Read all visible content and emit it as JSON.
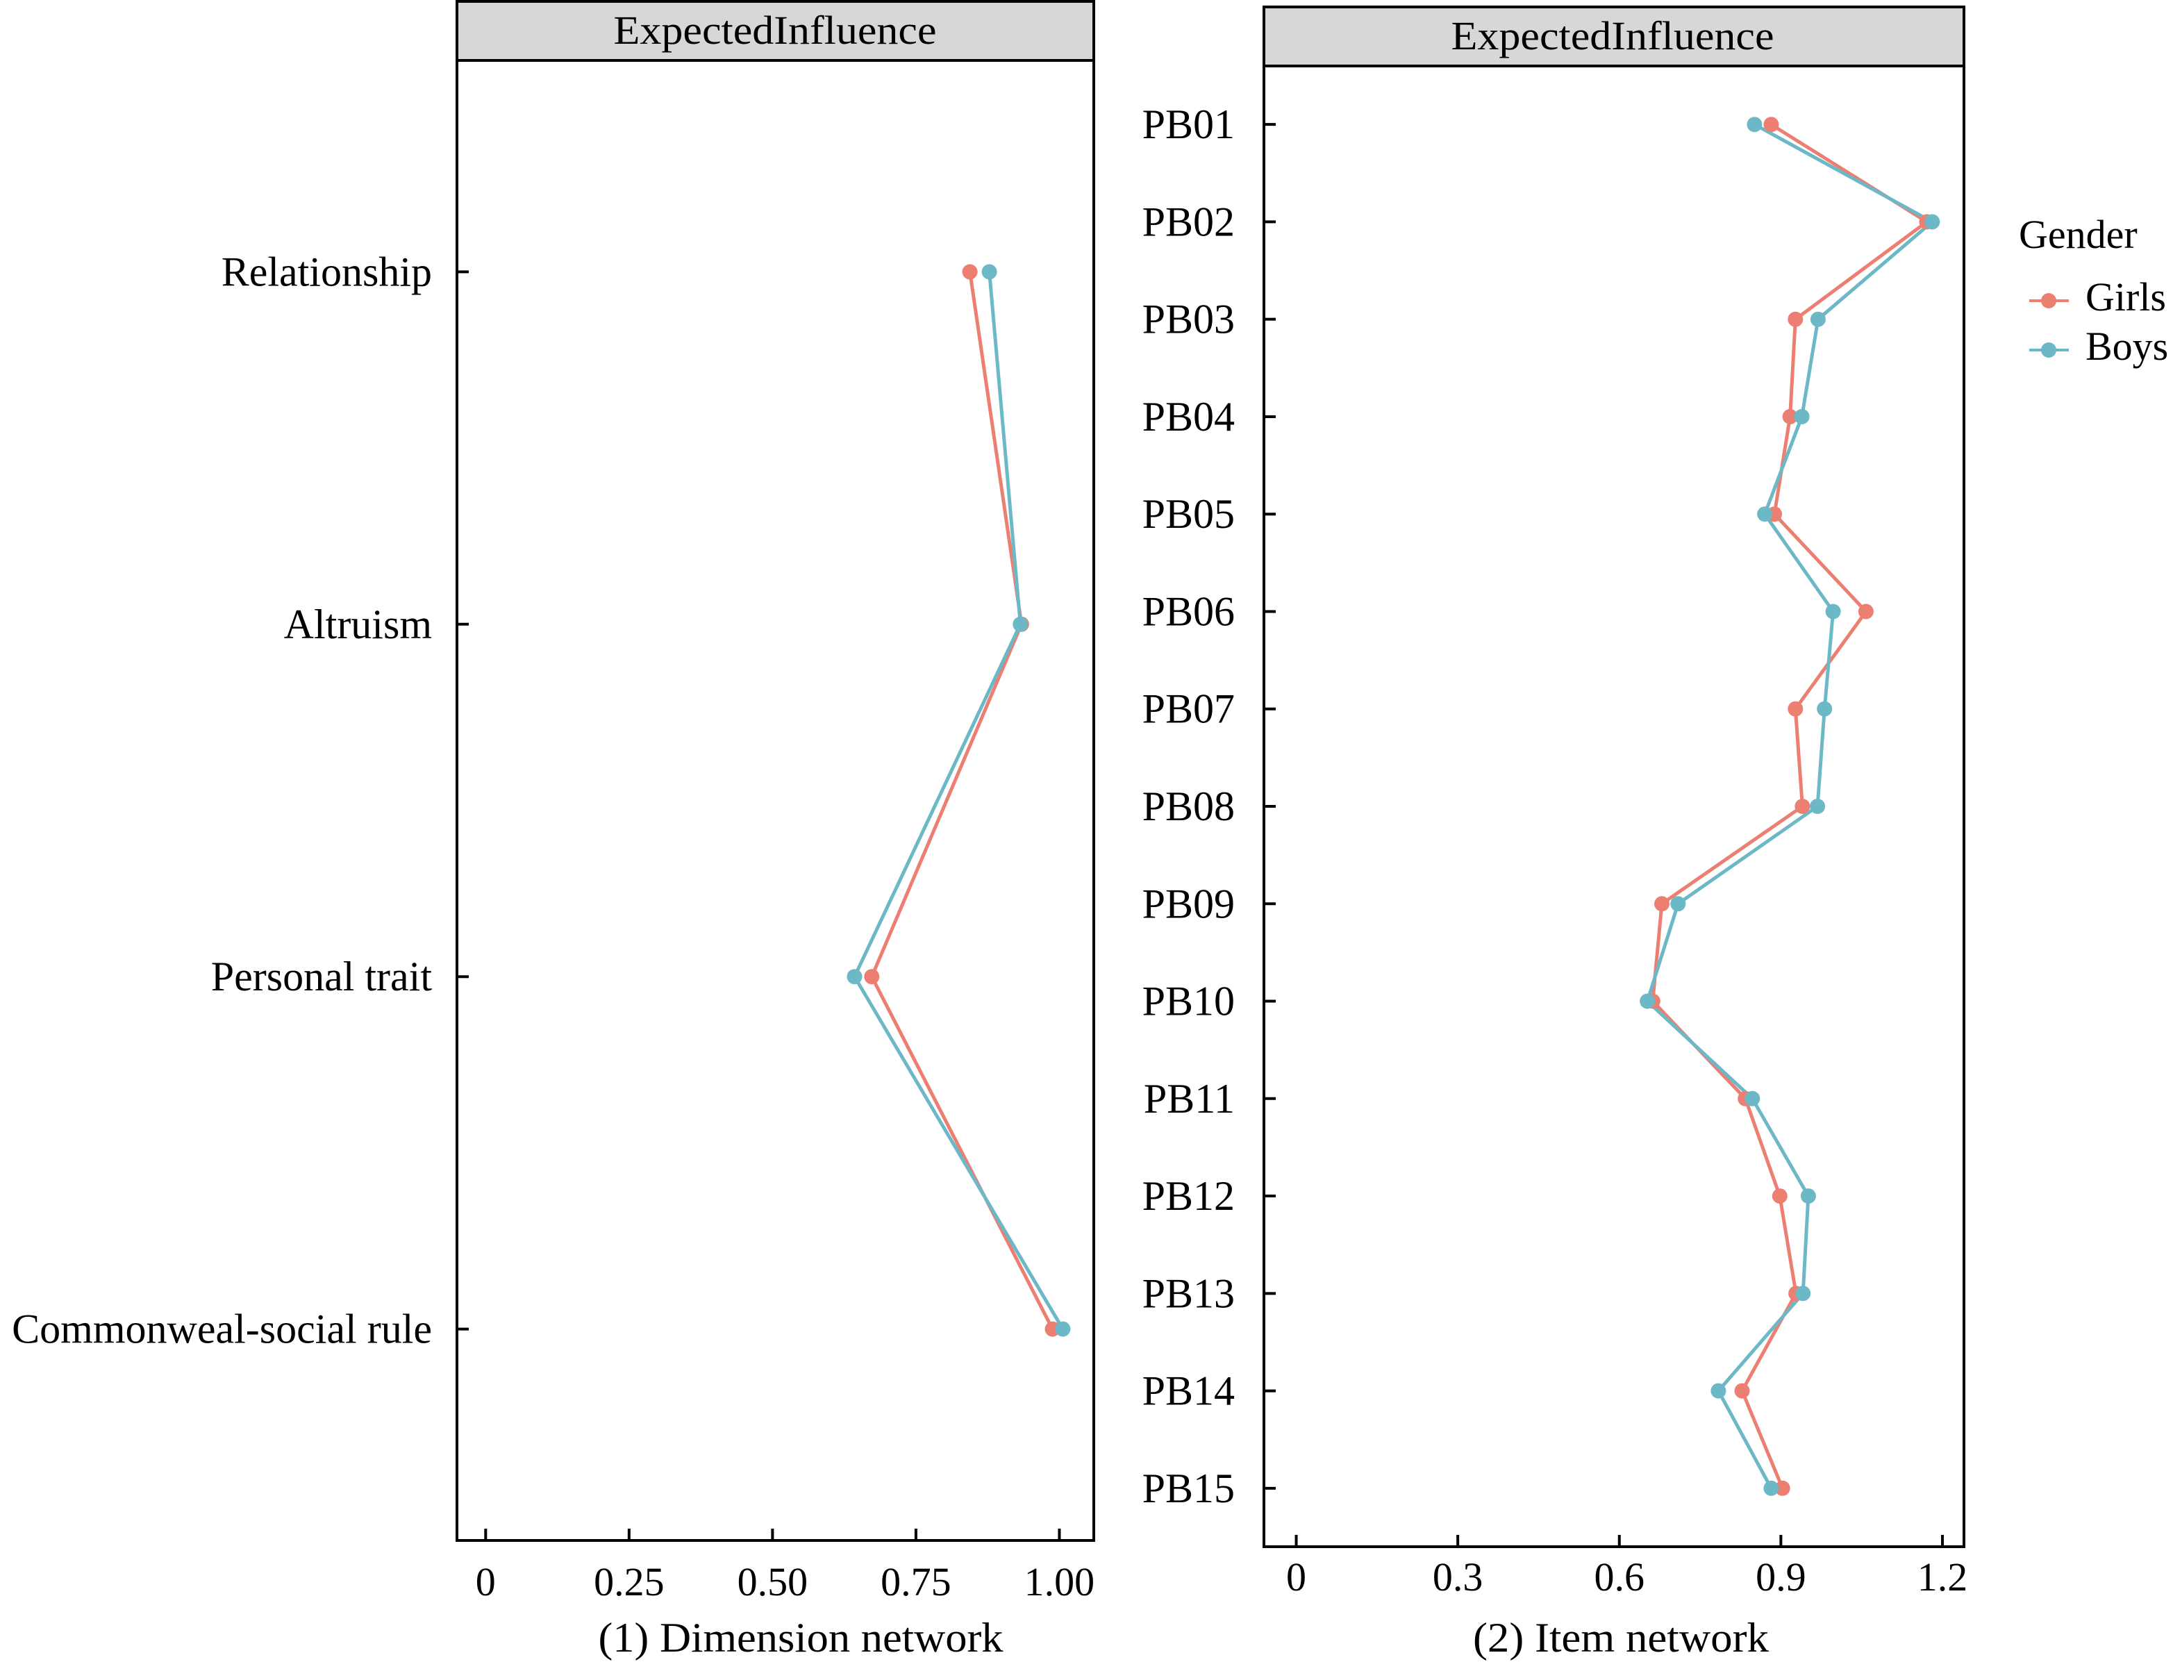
{
  "chart_data": [
    {
      "type": "line",
      "orientation": "horizontal",
      "strip_title": "ExpectedInfluence",
      "xlabel": "(1) Dimension network",
      "xlim": [
        -0.05,
        1.06
      ],
      "xticks": [
        0,
        0.25,
        0.5,
        0.75,
        1.0
      ],
      "xtick_labels": [
        "0",
        "0.25",
        "0.50",
        "0.75",
        "1.00"
      ],
      "categories": [
        "Relationship",
        "Altruism",
        "Personal trait",
        "Commonweal-social rule"
      ],
      "series": [
        {
          "name": "Girls",
          "values": [
            0.844,
            0.934,
            0.673,
            0.988
          ]
        },
        {
          "name": "Boys",
          "values": [
            0.878,
            0.932,
            0.643,
            1.006
          ]
        }
      ],
      "grid": false
    },
    {
      "type": "line",
      "orientation": "horizontal",
      "strip_title": "ExpectedInfluence",
      "xlabel": "(2) Item network",
      "xlim": [
        -0.06,
        1.24
      ],
      "xticks": [
        0,
        0.3,
        0.6,
        0.9,
        1.2
      ],
      "xtick_labels": [
        "0",
        "0.3",
        "0.6",
        "0.9",
        "1.2"
      ],
      "categories": [
        "PB01",
        "PB02",
        "PB03",
        "PB04",
        "PB05",
        "PB06",
        "PB07",
        "PB08",
        "PB09",
        "PB10",
        "PB11",
        "PB12",
        "PB13",
        "PB14",
        "PB15"
      ],
      "series": [
        {
          "name": "Girls",
          "values": [
            0.882,
            1.171,
            0.927,
            0.917,
            0.888,
            1.058,
            0.927,
            0.94,
            0.679,
            0.662,
            0.834,
            0.898,
            0.928,
            0.828,
            0.903
          ]
        },
        {
          "name": "Boys",
          "values": [
            0.851,
            1.181,
            0.969,
            0.939,
            0.87,
            0.997,
            0.981,
            0.968,
            0.709,
            0.652,
            0.847,
            0.951,
            0.941,
            0.784,
            0.882
          ]
        }
      ],
      "grid": false
    }
  ],
  "legend": {
    "title": "Gender",
    "position": "right",
    "items": [
      {
        "label": "Girls",
        "color": "#EC7F72"
      },
      {
        "label": "Boys",
        "color": "#6CB8C7"
      }
    ]
  },
  "colors": {
    "strip_fill": "#D7D6D8",
    "axis": "#000000"
  }
}
